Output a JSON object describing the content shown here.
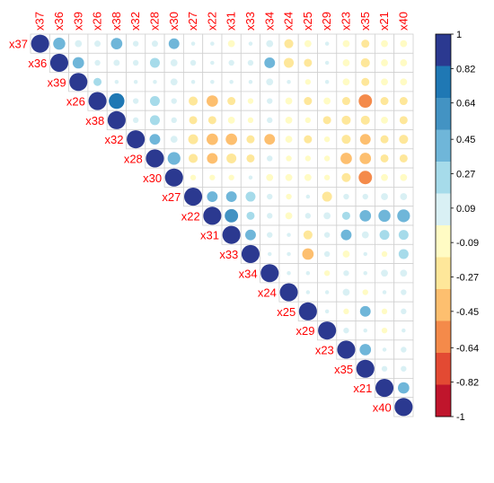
{
  "chart_data": {
    "type": "heatmap",
    "subtype": "correlation-upper-triangle-circles",
    "variables": [
      "x37",
      "x36",
      "x39",
      "x26",
      "x38",
      "x32",
      "x28",
      "x30",
      "x27",
      "x22",
      "x31",
      "x33",
      "x34",
      "x24",
      "x25",
      "x29",
      "x23",
      "x35",
      "x21",
      "x40"
    ],
    "label_color": "#ff0000",
    "color_scale": {
      "range": [
        -1,
        1
      ],
      "tick_labels": [
        "1",
        "0.82",
        "0.64",
        "0.45",
        "0.27",
        "0.09",
        "-0.09",
        "-0.27",
        "-0.45",
        "-0.64",
        "-0.82",
        "-1"
      ],
      "band_colors_top_to_bottom": [
        "#2b3990",
        "#1f78b4",
        "#4393c3",
        "#6fb6d9",
        "#a6dbea",
        "#d9f0f4",
        "#fffbc4",
        "#fee79a",
        "#fdbf6f",
        "#f48a4a",
        "#e34a33",
        "#c0152c"
      ]
    },
    "correlations": [
      [
        1.0,
        0.45,
        0.15,
        0.12,
        0.4,
        0.1,
        0.12,
        0.35,
        0.05,
        0.05,
        -0.15,
        0.05,
        0.15,
        -0.25,
        -0.15,
        0.05,
        -0.15,
        -0.2,
        -0.15,
        -0.15
      ],
      [
        null,
        1.0,
        0.4,
        0.1,
        0.12,
        0.1,
        0.3,
        0.15,
        0.1,
        0.05,
        0.1,
        0.1,
        0.35,
        -0.3,
        -0.2,
        0.05,
        -0.15,
        -0.25,
        -0.15,
        -0.15
      ],
      [
        null,
        null,
        1.0,
        0.2,
        0.05,
        0.05,
        0.05,
        0.15,
        0.05,
        0.05,
        0.05,
        0.05,
        0.15,
        0.05,
        -0.1,
        0.05,
        -0.15,
        -0.2,
        -0.15,
        -0.15
      ],
      [
        null,
        null,
        null,
        1.0,
        0.75,
        0.1,
        0.3,
        0.1,
        -0.25,
        -0.4,
        -0.2,
        -0.1,
        0.1,
        -0.15,
        -0.2,
        -0.15,
        -0.2,
        -0.55,
        -0.2,
        -0.2
      ],
      [
        null,
        null,
        null,
        null,
        1.0,
        0.1,
        0.3,
        0.1,
        -0.2,
        -0.2,
        -0.15,
        -0.1,
        0.1,
        -0.15,
        -0.1,
        -0.2,
        -0.25,
        -0.25,
        -0.15,
        -0.2
      ],
      [
        null,
        null,
        null,
        null,
        null,
        1.0,
        0.35,
        0.15,
        -0.3,
        -0.4,
        -0.4,
        -0.2,
        -0.35,
        -0.15,
        -0.2,
        -0.1,
        -0.25,
        -0.35,
        -0.2,
        -0.25
      ],
      [
        null,
        null,
        null,
        null,
        null,
        null,
        1.0,
        0.5,
        -0.25,
        -0.35,
        -0.3,
        -0.2,
        0.1,
        -0.1,
        -0.1,
        -0.1,
        -0.4,
        -0.4,
        -0.2,
        -0.2
      ],
      [
        null,
        null,
        null,
        null,
        null,
        null,
        null,
        1.0,
        -0.1,
        -0.1,
        -0.1,
        0.05,
        -0.15,
        -0.15,
        -0.15,
        -0.1,
        -0.25,
        -0.55,
        -0.15,
        -0.15
      ],
      [
        null,
        null,
        null,
        null,
        null,
        null,
        null,
        null,
        1.0,
        0.35,
        0.35,
        0.3,
        0.1,
        -0.1,
        0.05,
        -0.3,
        0.1,
        0.1,
        0.15,
        0.15
      ],
      [
        null,
        null,
        null,
        null,
        null,
        null,
        null,
        null,
        null,
        1.0,
        0.55,
        0.2,
        0.1,
        -0.15,
        0.1,
        0.15,
        0.2,
        0.4,
        0.45,
        0.5
      ],
      [
        null,
        null,
        null,
        null,
        null,
        null,
        null,
        null,
        null,
        null,
        1.0,
        0.35,
        0.1,
        0.05,
        -0.25,
        0.1,
        0.35,
        0.15,
        0.3,
        0.3
      ],
      [
        null,
        null,
        null,
        null,
        null,
        null,
        null,
        null,
        null,
        null,
        null,
        1.0,
        0.05,
        0.05,
        -0.4,
        0.1,
        -0.15,
        0.05,
        -0.1,
        0.3
      ],
      [
        null,
        null,
        null,
        null,
        null,
        null,
        null,
        null,
        null,
        null,
        null,
        null,
        1.0,
        0.05,
        0.05,
        -0.1,
        0.1,
        0.05,
        0.15,
        0.15
      ],
      [
        null,
        null,
        null,
        null,
        null,
        null,
        null,
        null,
        null,
        null,
        null,
        null,
        null,
        1.0,
        0.05,
        0.05,
        0.15,
        -0.1,
        0.05,
        0.1
      ],
      [
        null,
        null,
        null,
        null,
        null,
        null,
        null,
        null,
        null,
        null,
        null,
        null,
        null,
        null,
        1.0,
        0.05,
        -0.1,
        0.35,
        -0.1,
        0.1
      ],
      [
        null,
        null,
        null,
        null,
        null,
        null,
        null,
        null,
        null,
        null,
        null,
        null,
        null,
        null,
        null,
        1.0,
        0.1,
        0.05,
        -0.1,
        0.05
      ],
      [
        null,
        null,
        null,
        null,
        null,
        null,
        null,
        null,
        null,
        null,
        null,
        null,
        null,
        null,
        null,
        null,
        1.0,
        0.4,
        0.05,
        0.1
      ],
      [
        null,
        null,
        null,
        null,
        null,
        null,
        null,
        null,
        null,
        null,
        null,
        null,
        null,
        null,
        null,
        null,
        null,
        1.0,
        0.1,
        0.1
      ],
      [
        null,
        null,
        null,
        null,
        null,
        null,
        null,
        null,
        null,
        null,
        null,
        null,
        null,
        null,
        null,
        null,
        null,
        null,
        1.0,
        0.4
      ],
      [
        null,
        null,
        null,
        null,
        null,
        null,
        null,
        null,
        null,
        null,
        null,
        null,
        null,
        null,
        null,
        null,
        null,
        null,
        null,
        1.0
      ]
    ]
  }
}
